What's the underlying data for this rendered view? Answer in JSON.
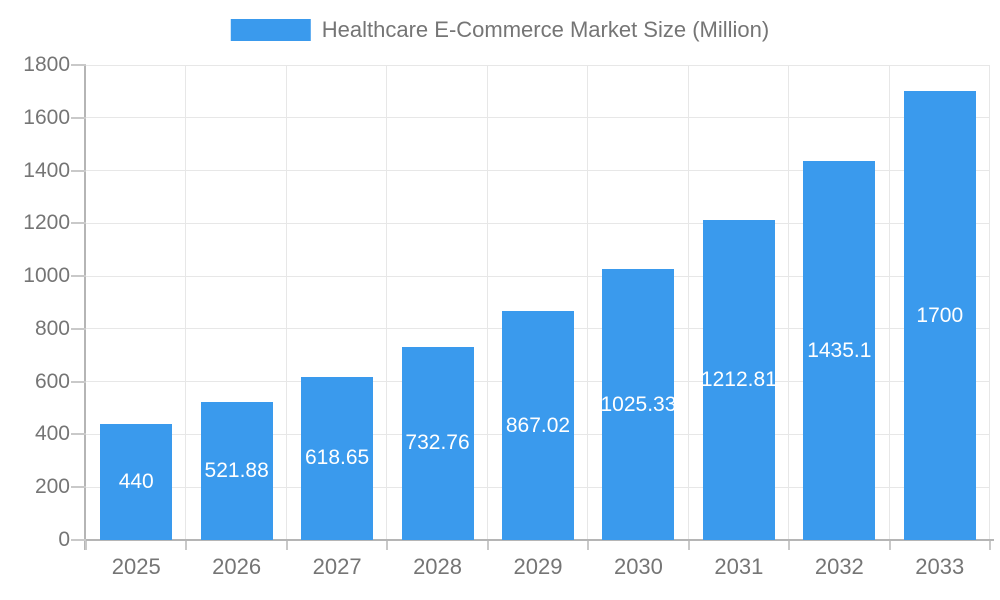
{
  "legend": {
    "label": "Healthcare E-Commerce Market Size (Million)"
  },
  "chart_data": {
    "type": "bar",
    "title": "Healthcare E-Commerce Market Size (Million)",
    "categories": [
      "2025",
      "2026",
      "2027",
      "2028",
      "2029",
      "2030",
      "2031",
      "2032",
      "2033"
    ],
    "values": [
      440,
      521.88,
      618.65,
      732.76,
      867.02,
      1025.33,
      1212.81,
      1435.1,
      1700
    ],
    "value_labels": [
      "440",
      "521.88",
      "618.65",
      "732.76",
      "867.02",
      "1025.33",
      "1212.81",
      "1435.1",
      "1700"
    ],
    "xlabel": "",
    "ylabel": "",
    "ylim": [
      0,
      1800
    ],
    "y_tick_step": 200,
    "y_ticks": [
      0,
      200,
      400,
      600,
      800,
      1000,
      1200,
      1400,
      1600,
      1800
    ],
    "grid": true,
    "legend_position": "top"
  },
  "colors": {
    "bar": "#3a9aed",
    "axis_line": "#b5b5b5",
    "tick_mark": "#c9c9c9",
    "grid_line": "#e7e7e7",
    "tick_text": "#757575",
    "value_text": "#ffffff",
    "background": "#ffffff"
  }
}
